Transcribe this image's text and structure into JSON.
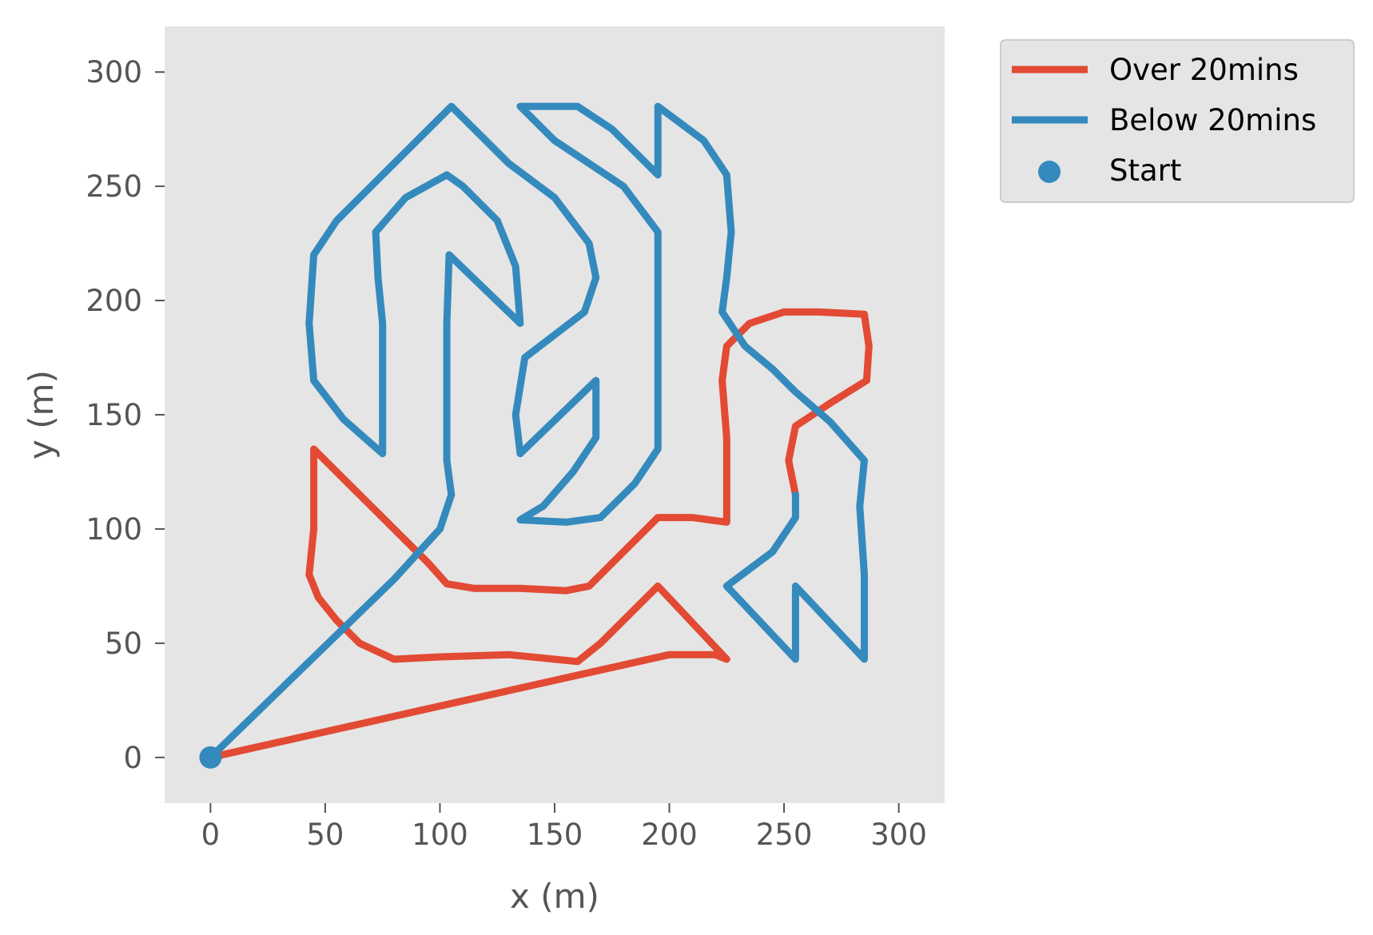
{
  "chart_data": {
    "type": "line",
    "title": "",
    "xlabel": "x (m)",
    "ylabel": "y (m)",
    "xlim": [
      -20,
      320
    ],
    "ylim": [
      320,
      -20
    ],
    "y_inverted": true,
    "xticks": [
      0,
      50,
      100,
      150,
      200,
      250,
      300
    ],
    "yticks": [
      0,
      50,
      100,
      150,
      200,
      250,
      300
    ],
    "grid": false,
    "legend_placement": "outside-top-right",
    "background": {
      "type": "heatmap",
      "colormap": "gray",
      "extent": [
        0,
        300,
        0,
        300
      ],
      "peaks": [
        {
          "x": 85,
          "y": 175,
          "sigma": 50,
          "amplitude": 1.0
        },
        {
          "x": 300,
          "y": 40,
          "sigma": 45,
          "amplitude": 1.0
        }
      ]
    },
    "series": [
      {
        "name": "Over 20mins",
        "color": "#E24A33",
        "segments": [
          [
            [
              0,
              0
            ],
            [
              200,
              45
            ],
            [
              220,
              45
            ],
            [
              225,
              43
            ],
            [
              195,
              75
            ],
            [
              170,
              50
            ],
            [
              160,
              42
            ],
            [
              130,
              45
            ],
            [
              100,
              44
            ],
            [
              80,
              43
            ],
            [
              65,
              50
            ],
            [
              55,
              60
            ],
            [
              47,
              70
            ],
            [
              43,
              80
            ],
            [
              45,
              100
            ],
            [
              45,
              115
            ],
            [
              45,
              135
            ],
            [
              60,
              120
            ],
            [
              75,
              105
            ],
            [
              85,
              95
            ],
            [
              95,
              85
            ],
            [
              103,
              76
            ],
            [
              115,
              74
            ],
            [
              135,
              74
            ],
            [
              155,
              73
            ],
            [
              165,
              75
            ],
            [
              175,
              85
            ],
            [
              185,
              95
            ],
            [
              195,
              105
            ],
            [
              210,
              105
            ],
            [
              225,
              103
            ],
            [
              225,
              140
            ],
            [
              223,
              165
            ],
            [
              225,
              180
            ],
            [
              235,
              190
            ],
            [
              250,
              195
            ],
            [
              265,
              195
            ],
            [
              285,
              194
            ],
            [
              287,
              180
            ],
            [
              286,
              165
            ],
            [
              270,
              155
            ],
            [
              255,
              145
            ],
            [
              252,
              130
            ],
            [
              255,
              115
            ]
          ]
        ]
      },
      {
        "name": "Below 20mins",
        "color": "#348ABD",
        "segments": [
          [
            [
              0,
              0
            ],
            [
              80,
              78
            ],
            [
              100,
              100
            ],
            [
              105,
              115
            ],
            [
              103,
              130
            ],
            [
              103,
              150
            ],
            [
              103,
              190
            ],
            [
              104,
              220
            ],
            [
              135,
              190
            ],
            [
              133,
              215
            ],
            [
              125,
              235
            ],
            [
              110,
              250
            ],
            [
              103,
              255
            ],
            [
              85,
              245
            ],
            [
              72,
              230
            ],
            [
              73,
              210
            ],
            [
              75,
              190
            ],
            [
              75,
              170
            ],
            [
              75,
              133
            ],
            [
              58,
              148
            ],
            [
              45,
              165
            ],
            [
              43,
              190
            ],
            [
              45,
              220
            ],
            [
              55,
              235
            ],
            [
              80,
              260
            ],
            [
              105,
              285
            ],
            [
              130,
              260
            ],
            [
              150,
              245
            ],
            [
              165,
              225
            ],
            [
              168,
              210
            ],
            [
              163,
              195
            ],
            [
              150,
              185
            ],
            [
              137,
              175
            ],
            [
              133,
              150
            ],
            [
              135,
              133
            ],
            [
              168,
              165
            ],
            [
              168,
              140
            ],
            [
              158,
              125
            ],
            [
              145,
              110
            ],
            [
              135,
              104
            ],
            [
              155,
              103
            ],
            [
              170,
              105
            ],
            [
              185,
              120
            ],
            [
              195,
              135
            ],
            [
              195,
              160
            ],
            [
              195,
              200
            ],
            [
              195,
              230
            ],
            [
              180,
              250
            ],
            [
              165,
              260
            ],
            [
              150,
              270
            ],
            [
              135,
              285
            ],
            [
              160,
              285
            ],
            [
              175,
              275
            ],
            [
              195,
              255
            ],
            [
              195,
              285
            ],
            [
              215,
              270
            ],
            [
              225,
              255
            ],
            [
              227,
              230
            ],
            [
              225,
              210
            ],
            [
              223,
              195
            ],
            [
              233,
              180
            ],
            [
              245,
              170
            ],
            [
              255,
              160
            ],
            [
              270,
              147
            ],
            [
              285,
              130
            ],
            [
              283,
              110
            ],
            [
              285,
              80
            ],
            [
              285,
              43
            ],
            [
              255,
              75
            ],
            [
              255,
              43
            ],
            [
              225,
              75
            ],
            [
              245,
              90
            ],
            [
              255,
              105
            ],
            [
              255,
              115
            ]
          ]
        ]
      }
    ],
    "start": {
      "name": "Start",
      "x": 0,
      "y": 0,
      "color": "#348ABD"
    }
  }
}
